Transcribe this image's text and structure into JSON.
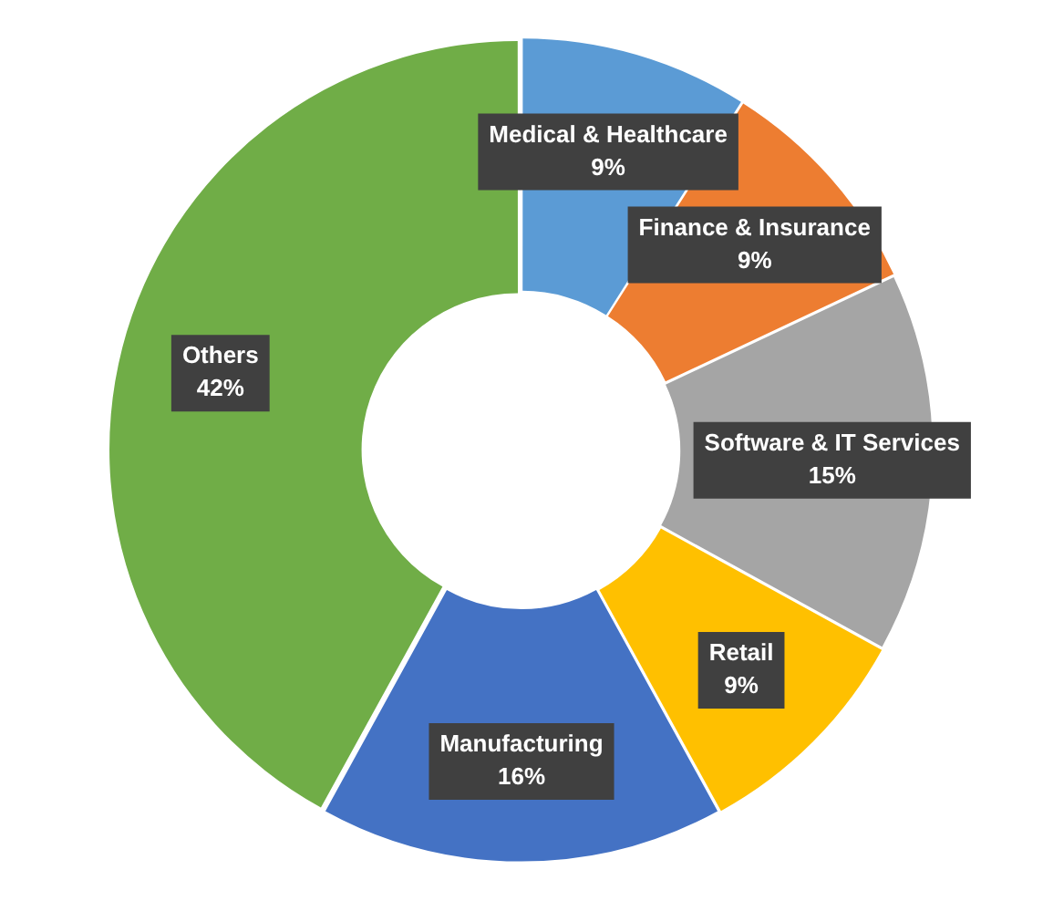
{
  "chart_data": {
    "type": "donut",
    "categories": [
      "Medical & Healthcare",
      "Finance & Insurance",
      "Software & IT Services",
      "Retail",
      "Manufacturing",
      "Others"
    ],
    "values": [
      9,
      9,
      15,
      9,
      16,
      42
    ],
    "colors": [
      "#5b9bd5",
      "#ed7d31",
      "#a5a5a5",
      "#ffc000",
      "#4472c4",
      "#70ad47"
    ],
    "value_labels": [
      "9%",
      "9%",
      "15%",
      "9%",
      "16%",
      "42%"
    ],
    "legend": false
  }
}
